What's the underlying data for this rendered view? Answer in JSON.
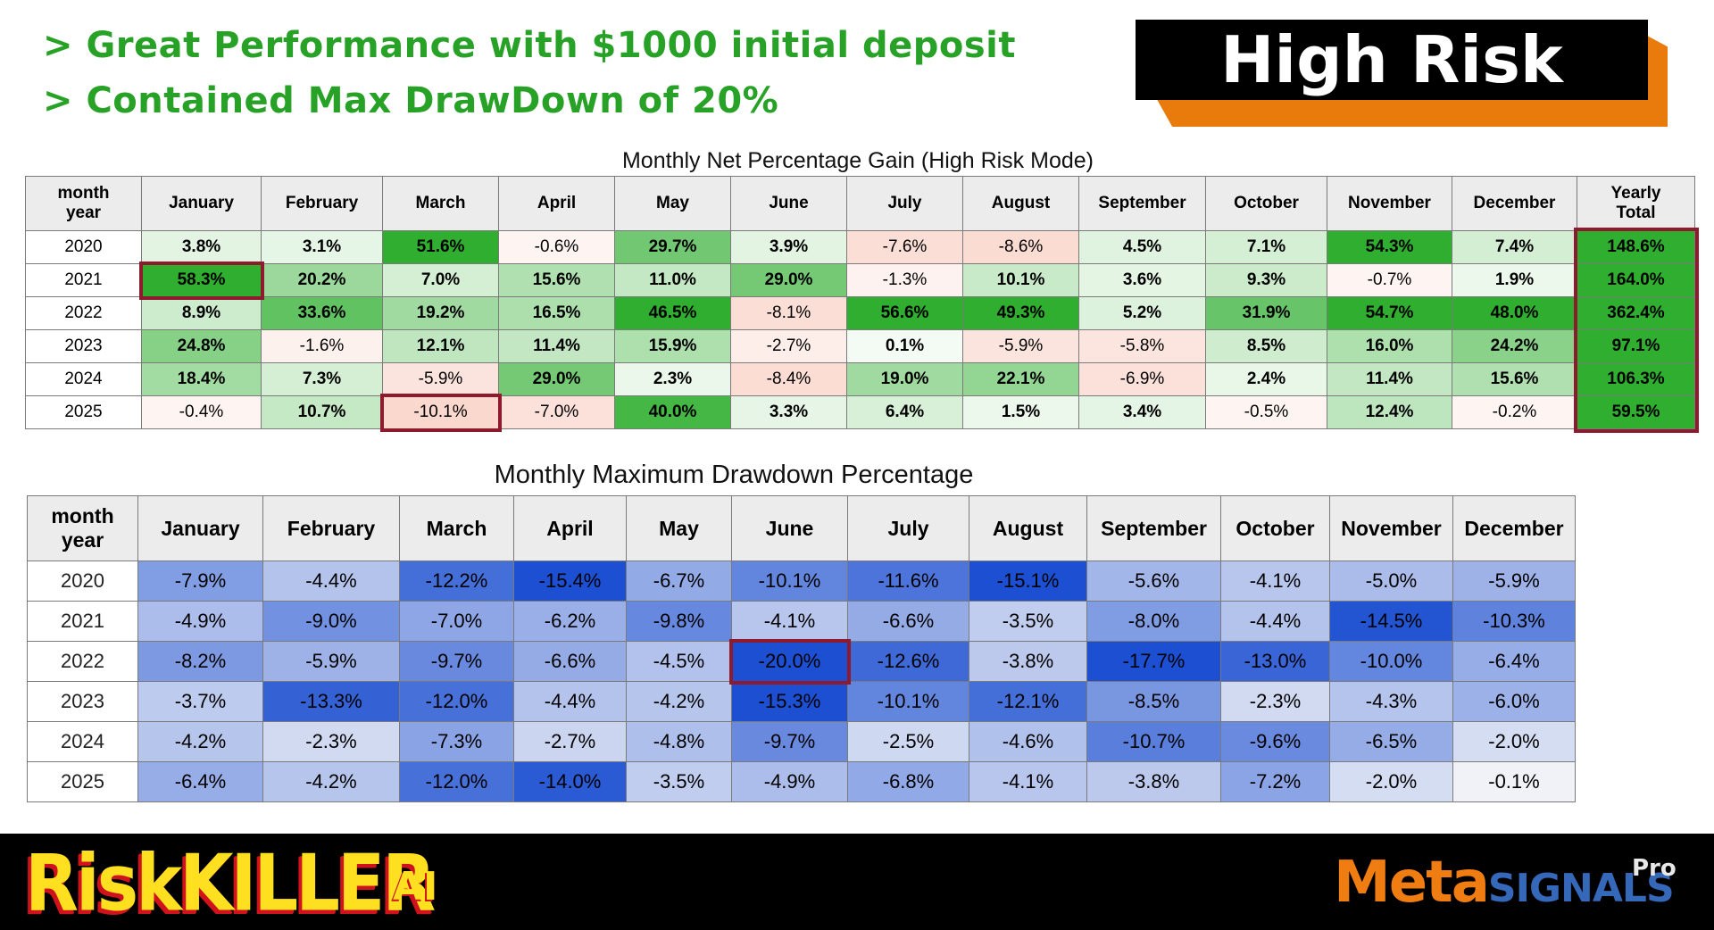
{
  "headlines": {
    "line1": "> Great Performance with $1000 initial deposit",
    "line2": "> Contained Max DrawDown of 20%"
  },
  "badge": {
    "label": "High Risk"
  },
  "gain_table": {
    "title": "Monthly Net Percentage Gain (High Risk Mode)",
    "header_year_line1": "month",
    "header_year_line2": "year",
    "months": [
      "January",
      "February",
      "March",
      "April",
      "May",
      "June",
      "July",
      "August",
      "September",
      "October",
      "November",
      "December"
    ],
    "total_line1": "Yearly",
    "total_line2": "Total",
    "rows": [
      {
        "year": "2020",
        "values": [
          3.8,
          3.1,
          51.6,
          -0.6,
          29.7,
          3.9,
          -7.6,
          -8.6,
          4.5,
          7.1,
          54.3,
          7.4
        ],
        "total": 148.6
      },
      {
        "year": "2021",
        "values": [
          58.3,
          20.2,
          7.0,
          15.6,
          11.0,
          29.0,
          -1.3,
          10.1,
          3.6,
          9.3,
          -0.7,
          1.9
        ],
        "total": 164.0
      },
      {
        "year": "2022",
        "values": [
          8.9,
          33.6,
          19.2,
          16.5,
          46.5,
          -8.1,
          56.6,
          49.3,
          5.2,
          31.9,
          54.7,
          48.0
        ],
        "total": 362.4
      },
      {
        "year": "2023",
        "values": [
          24.8,
          -1.6,
          12.1,
          11.4,
          15.9,
          -2.7,
          0.1,
          -5.9,
          -5.8,
          8.5,
          16.0,
          24.2
        ],
        "total": 97.1
      },
      {
        "year": "2024",
        "values": [
          18.4,
          7.3,
          -5.9,
          29.0,
          2.3,
          -8.4,
          19.0,
          22.1,
          -6.9,
          2.4,
          11.4,
          15.6
        ],
        "total": 106.3
      },
      {
        "year": "2025",
        "values": [
          -0.4,
          10.7,
          -10.1,
          -7.0,
          40.0,
          3.3,
          6.4,
          1.5,
          3.4,
          -0.5,
          12.4,
          -0.2
        ],
        "total": 59.5
      }
    ]
  },
  "drawdown_table": {
    "title": "Monthly Maximum Drawdown Percentage",
    "header_year_line1": "month",
    "header_year_line2": "year",
    "months": [
      "January",
      "February",
      "March",
      "April",
      "May",
      "June",
      "July",
      "August",
      "September",
      "October",
      "November",
      "December"
    ],
    "rows": [
      {
        "year": "2020",
        "values": [
          -7.9,
          -4.4,
          -12.2,
          -15.4,
          -6.7,
          -10.1,
          -11.6,
          -15.1,
          -5.6,
          -4.1,
          -5.0,
          -5.9
        ]
      },
      {
        "year": "2021",
        "values": [
          -4.9,
          -9.0,
          -7.0,
          -6.2,
          -9.8,
          -4.1,
          -6.6,
          -3.5,
          -8.0,
          -4.4,
          -14.5,
          -10.3
        ]
      },
      {
        "year": "2022",
        "values": [
          -8.2,
          -5.9,
          -9.7,
          -6.6,
          -4.5,
          -20.0,
          -12.6,
          -3.8,
          -17.7,
          -13.0,
          -10.0,
          -6.4
        ]
      },
      {
        "year": "2023",
        "values": [
          -3.7,
          -13.3,
          -12.0,
          -4.4,
          -4.2,
          -15.3,
          -10.1,
          -12.1,
          -8.5,
          -2.3,
          -4.3,
          -6.0
        ]
      },
      {
        "year": "2024",
        "values": [
          -4.2,
          -2.3,
          -7.3,
          -2.7,
          -4.8,
          -9.7,
          -2.5,
          -4.6,
          -10.7,
          -9.6,
          -6.5,
          -2.0
        ]
      },
      {
        "year": "2025",
        "values": [
          -6.4,
          -4.2,
          -12.0,
          -14.0,
          -3.5,
          -4.9,
          -6.8,
          -4.1,
          -3.8,
          -7.2,
          -2.0,
          -0.1
        ]
      }
    ]
  },
  "highlights": {
    "gain_cells": [
      "2021-January",
      "2025-March"
    ],
    "gain_total_column": true,
    "drawdown_cells": [
      "2022-June"
    ]
  },
  "colors": {
    "headline_green": "#27a227",
    "badge_orange": "#e97b0c",
    "highlight_border": "#8e1a2e",
    "gain_positive": "#2fae2f",
    "gain_negative": "#fadcd4",
    "drawdown_blue": "#1c4fd1"
  },
  "branding": {
    "riskkiller": "RiskKILLER",
    "riskkiller_suffix": "AI",
    "metasignals_meta": "Meta",
    "metasignals_signals": "SIGNALS",
    "metasignals_pro": "Pro"
  }
}
